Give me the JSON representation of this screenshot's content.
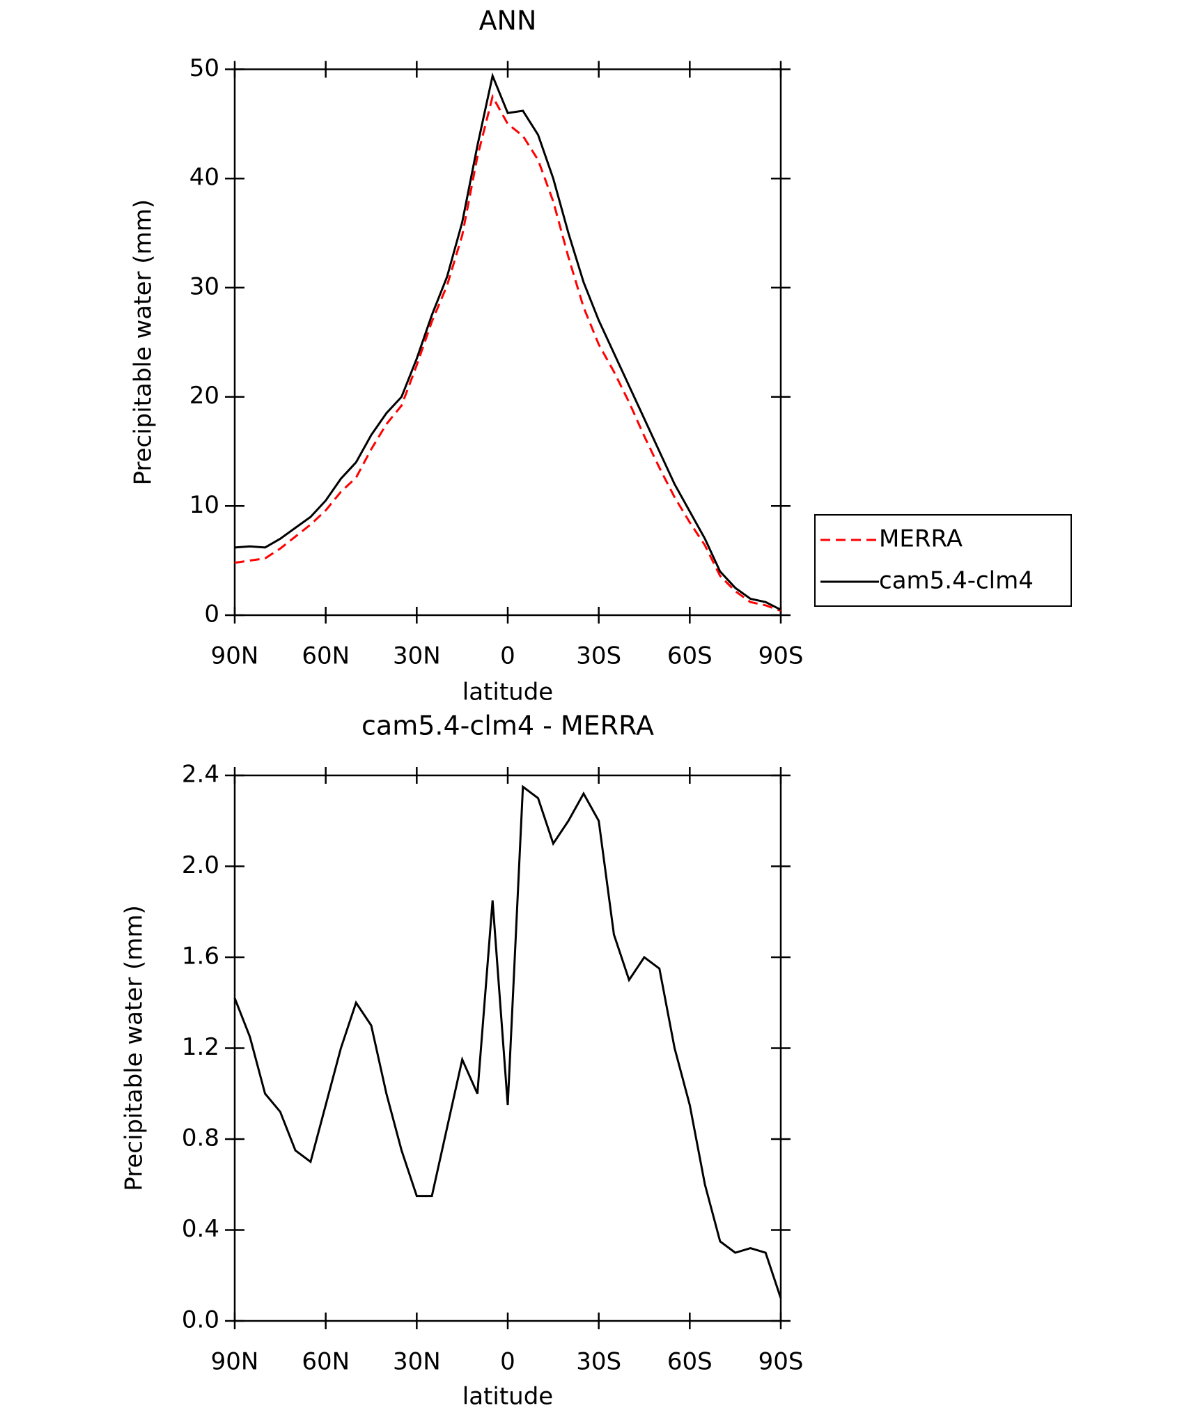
{
  "chart_data": [
    {
      "type": "line",
      "title": "ANN",
      "x_label": "latitude",
      "y_label": "Precipitable water (mm)",
      "x": [
        90,
        85,
        80,
        75,
        70,
        65,
        60,
        55,
        50,
        45,
        40,
        35,
        30,
        25,
        20,
        15,
        10,
        5,
        0,
        -5,
        -10,
        -15,
        -20,
        -25,
        -30,
        -35,
        -40,
        -45,
        -50,
        -55,
        -60,
        -65,
        -70,
        -75,
        -80,
        -85,
        -90
      ],
      "series": [
        {
          "name": "MERRA",
          "color": "#ff0000",
          "dashed": true,
          "values": [
            4.8,
            5.0,
            5.2,
            6.1,
            7.2,
            8.3,
            9.6,
            11.3,
            12.6,
            15.2,
            17.5,
            19.2,
            22.9,
            26.9,
            30.2,
            34.8,
            42.0,
            47.5,
            45.0,
            43.9,
            41.7,
            37.9,
            32.8,
            28.2,
            24.8,
            22.3,
            19.5,
            16.4,
            13.5,
            10.8,
            8.5,
            6.4,
            3.6,
            2.2,
            1.2,
            0.9,
            0.4
          ]
        },
        {
          "name": "cam5.4-clm4",
          "color": "#000000",
          "dashed": false,
          "values": [
            6.2,
            6.3,
            6.2,
            7.0,
            8.0,
            9.0,
            10.5,
            12.5,
            14.0,
            16.5,
            18.5,
            20.0,
            23.5,
            27.5,
            31.0,
            36.0,
            43.0,
            49.4,
            46.0,
            46.2,
            44.0,
            40.0,
            35.0,
            30.5,
            27.0,
            24.0,
            21.0,
            18.0,
            15.0,
            12.0,
            9.5,
            7.0,
            4.0,
            2.5,
            1.5,
            1.2,
            0.5
          ]
        }
      ],
      "xlim": [
        90,
        -90
      ],
      "xticks": [
        {
          "value": 90,
          "label": "90N"
        },
        {
          "value": 60,
          "label": "60N"
        },
        {
          "value": 30,
          "label": "30N"
        },
        0,
        {
          "value": -30,
          "label": "30S"
        },
        {
          "value": -60,
          "label": "60S"
        },
        {
          "value": -90,
          "label": "90S"
        }
      ],
      "ylim": [
        0,
        50
      ],
      "yticks": [
        0,
        10,
        20,
        30,
        40,
        50
      ],
      "legend": "right"
    },
    {
      "type": "line",
      "title": "cam5.4-clm4 - MERRA",
      "x_label": "latitude",
      "y_label": "Precipitable water (mm)",
      "x": [
        90,
        85,
        80,
        75,
        70,
        65,
        60,
        55,
        50,
        45,
        40,
        35,
        30,
        25,
        20,
        15,
        10,
        5,
        0,
        -5,
        -10,
        -15,
        -20,
        -25,
        -30,
        -35,
        -40,
        -45,
        -50,
        -55,
        -60,
        -65,
        -70,
        -75,
        -80,
        -85,
        -90
      ],
      "color": "#000000",
      "values": [
        1.42,
        1.25,
        1.0,
        0.92,
        0.75,
        0.7,
        0.95,
        1.2,
        1.4,
        1.3,
        1.0,
        0.75,
        0.55,
        0.55,
        0.85,
        1.15,
        1.0,
        1.85,
        0.95,
        2.35,
        2.3,
        2.1,
        2.2,
        2.32,
        2.2,
        1.7,
        1.5,
        1.6,
        1.55,
        1.2,
        0.95,
        0.6,
        0.35,
        0.3,
        0.32,
        0.3,
        0.1
      ],
      "xlim": [
        90,
        -90
      ],
      "xticks": [
        {
          "value": 90,
          "label": "90N"
        },
        {
          "value": 60,
          "label": "60N"
        },
        {
          "value": 30,
          "label": "30N"
        },
        0,
        {
          "value": -30,
          "label": "30S"
        },
        {
          "value": -60,
          "label": "60S"
        },
        {
          "value": -90,
          "label": "90S"
        }
      ],
      "ylim": [
        0,
        2.4
      ],
      "yticks": [
        {
          "value": 0,
          "label": "0.0"
        },
        0.4,
        0.8,
        1.2,
        1.6,
        {
          "value": 2,
          "label": "2.0"
        },
        2.4
      ]
    }
  ]
}
